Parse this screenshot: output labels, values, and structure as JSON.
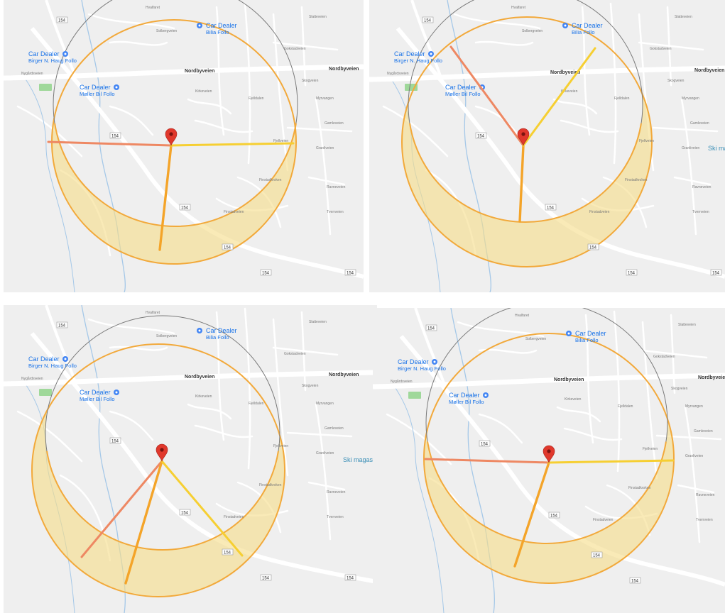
{
  "map": {
    "poi_primary": "Car Dealer",
    "poi_birger": "Birger N. Haug Follo",
    "poi_moller": "Møller Bil Follo",
    "poi_bilia": "Bilia Follo",
    "road_nordbyveien": "Nordbyveien",
    "route_shield": "154",
    "place_ski": "Ski magasin",
    "street_labels": [
      "Hvalfaret",
      "Solbergveien",
      "Gokstadveien",
      "Skogveien",
      "Slatteveien",
      "Myrvangen",
      "Gamleveien",
      "Granliveien",
      "Fjellveien",
      "Finstadveien",
      "Kirkeveien",
      "Nygårdsveien",
      "Fjelldalen",
      "Finstadkroken",
      "Ravneveien",
      "Tverrveien"
    ]
  },
  "colors": {
    "circle_stroke": "#7a7a7a",
    "crescent_fill": "#f5dd8a",
    "crescent_stroke": "#f2a93b",
    "line_left": "#ee8863",
    "line_mid": "#f4a429",
    "line_right": "#f6cf32",
    "pin": "#e0382c"
  },
  "panels": [
    {
      "name": "top-left",
      "variant": "horizontal-split"
    },
    {
      "name": "top-right",
      "variant": "upper-v-split"
    },
    {
      "name": "bottom-left",
      "variant": "lower-v-split"
    },
    {
      "name": "bottom-right",
      "variant": "horizontal-split"
    }
  ]
}
